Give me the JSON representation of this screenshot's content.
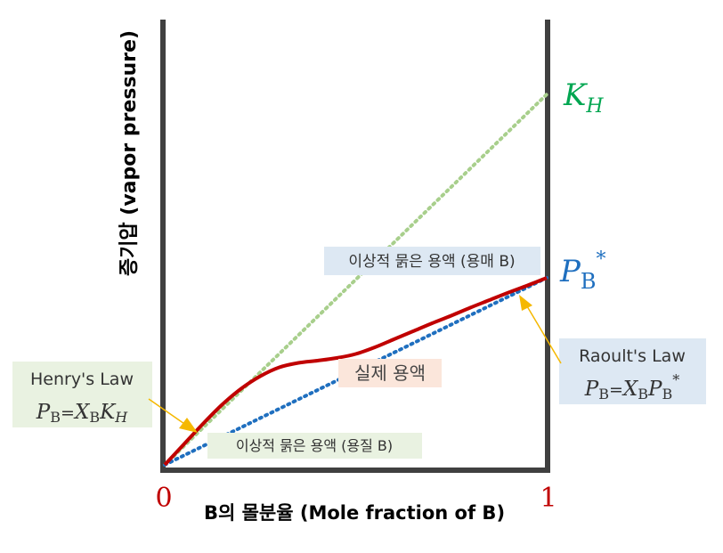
{
  "chart_data": {
    "type": "line",
    "ylabel": "증기압 (vapor pressure)",
    "xlabel": "B의 몰분율 (Mole fraction of B)",
    "xlim": [
      0,
      1
    ],
    "ylim": [
      0,
      1
    ],
    "x_ticks": [
      "0",
      "1"
    ],
    "grid": false,
    "series": [
      {
        "kind": "dotted",
        "color": "#a8cf8c",
        "x": [
          0,
          1
        ],
        "y": [
          0,
          0.832
        ]
      },
      {
        "kind": "dotted",
        "color": "#1f6fbf",
        "x": [
          0,
          1
        ],
        "y": [
          0,
          0.42
        ]
      },
      {
        "kind": "solid",
        "color": "#c00000",
        "x": [
          0,
          0.05,
          0.1,
          0.15,
          0.2,
          0.25,
          0.3,
          0.35,
          0.4,
          0.45,
          0.5,
          0.55,
          0.6,
          0.65,
          0.7,
          0.75,
          0.8,
          0.85,
          0.9,
          0.95,
          1.0
        ],
        "y": [
          0,
          0.046,
          0.092,
          0.135,
          0.171,
          0.199,
          0.219,
          0.229,
          0.234,
          0.24,
          0.249,
          0.264,
          0.282,
          0.3,
          0.318,
          0.335,
          0.353,
          0.37,
          0.387,
          0.403,
          0.42
        ]
      }
    ],
    "annotations": {
      "kh_label": {
        "main": "K",
        "sub": "H",
        "color": "#00a651"
      },
      "pb_label": {
        "main": "P",
        "sub": "B",
        "sup": "*",
        "color": "#1f6fbf"
      },
      "ideal_solvent": {
        "text": "이상적 묽은 용액 (용매 B)",
        "bg": "#dde8f3"
      },
      "ideal_solute": {
        "text": "이상적 묽은 용액 (용질 B)",
        "bg": "#e9f2e1"
      },
      "real_solution": {
        "text": "실제 용액",
        "bg": "#fbe6db"
      },
      "henry": {
        "title": "Henry's Law",
        "eq_p": "P",
        "eq_p_sub": "B",
        "eq_eq": "=",
        "eq_x": "X",
        "eq_x_sub": "B",
        "eq_k": "K",
        "eq_k_sub": "H",
        "bg": "#e9f2e1"
      },
      "raoult": {
        "title": "Raoult's Law",
        "eq_p": "P",
        "eq_p_sub": "B",
        "eq_eq": "=",
        "eq_x": "X",
        "eq_x_sub": "B",
        "eq_p2": "P",
        "eq_p2_sub": "B",
        "eq_p2_sup": "*",
        "bg": "#dde8f3"
      },
      "arrow_color": "#f5b800",
      "tick_color": "#c00000"
    }
  }
}
